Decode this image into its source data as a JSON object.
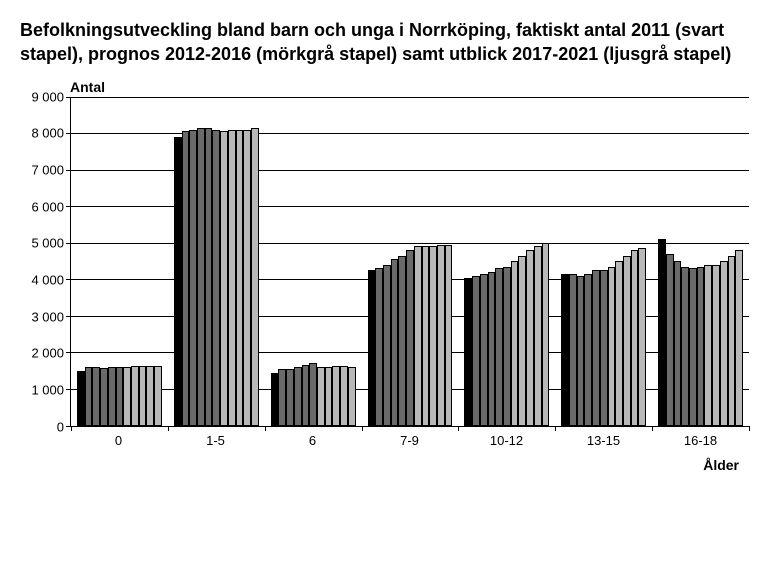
{
  "chart": {
    "type": "bar-grouped",
    "title": "Befolkningsutveckling bland barn och unga i Norrköping, faktiskt antal 2011 (svart stapel), prognos 2012-2016 (mörkgrå stapel) samt utblick 2017-2021 (ljusgrå stapel)",
    "y_axis_title": "Antal",
    "x_axis_title": "Ålder",
    "title_fontsize_pt": 14,
    "axis_title_fontsize_pt": 11,
    "tick_fontsize_pt": 10,
    "background_color": "#ffffff",
    "gridline_color": "#000000",
    "axis_color": "#000000",
    "bar_border_color": "#000000",
    "ylim": [
      0,
      9000
    ],
    "ytick_step": 1000,
    "yticks": [
      0,
      1000,
      2000,
      3000,
      4000,
      5000,
      6000,
      7000,
      8000,
      9000
    ],
    "ytick_labels": [
      "0",
      "1 000",
      "2 000",
      "3 000",
      "4 000",
      "5 000",
      "6 000",
      "7 000",
      "8 000",
      "9 000"
    ],
    "categories": [
      "0",
      "1-5",
      "6",
      "7-9",
      "10-12",
      "13-15",
      "16-18"
    ],
    "bars_per_group": 11,
    "series_colors": {
      "actual_2011": "#000000",
      "forecast_2012_2016": "#6a6a6a",
      "outlook_2017_2021": "#b8b8b8"
    },
    "series_roles": [
      "actual_2011",
      "forecast_2012_2016",
      "forecast_2012_2016",
      "forecast_2012_2016",
      "forecast_2012_2016",
      "forecast_2012_2016",
      "outlook_2017_2021",
      "outlook_2017_2021",
      "outlook_2017_2021",
      "outlook_2017_2021",
      "outlook_2017_2021"
    ],
    "data": {
      "0": [
        1500,
        1600,
        1600,
        1580,
        1600,
        1600,
        1600,
        1620,
        1620,
        1630,
        1640
      ],
      "1-5": [
        7900,
        8050,
        8100,
        8150,
        8150,
        8100,
        8050,
        8100,
        8100,
        8100,
        8150
      ],
      "6": [
        1450,
        1550,
        1550,
        1600,
        1650,
        1700,
        1600,
        1600,
        1620,
        1620,
        1600
      ],
      "7-9": [
        4250,
        4300,
        4400,
        4550,
        4650,
        4800,
        4900,
        4900,
        4900,
        4950,
        4950
      ],
      "10-12": [
        4050,
        4100,
        4150,
        4200,
        4300,
        4350,
        4500,
        4650,
        4800,
        4900,
        5000
      ],
      "13-15": [
        4150,
        4150,
        4100,
        4150,
        4250,
        4250,
        4350,
        4500,
        4650,
        4800,
        4850
      ],
      "16-18": [
        5100,
        4700,
        4500,
        4350,
        4300,
        4350,
        4400,
        4400,
        4500,
        4650,
        4800
      ]
    }
  }
}
